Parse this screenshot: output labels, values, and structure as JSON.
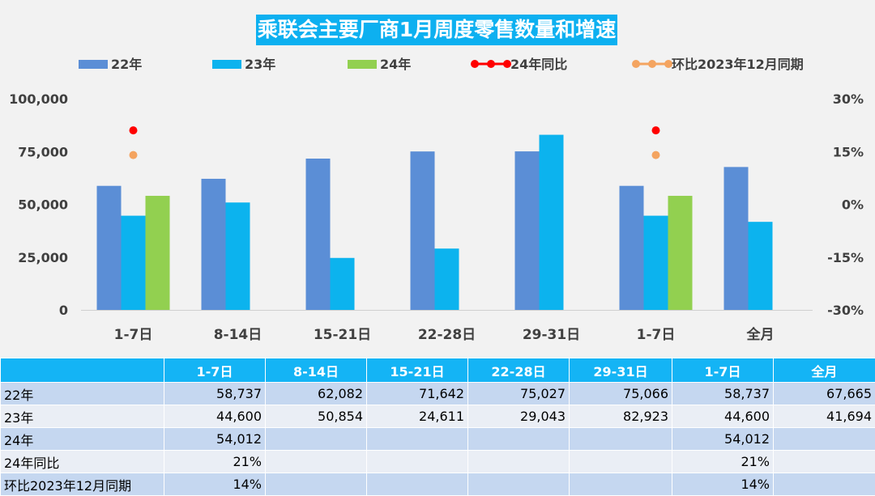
{
  "chart_data": {
    "type": "bar",
    "title": "乘联会主要厂商1月周度零售数量和增速",
    "categories": [
      "1-7日",
      "8-14日",
      "15-21日",
      "22-28日",
      "29-31日",
      "1-7日",
      "全月"
    ],
    "series": [
      {
        "name": "22年",
        "color": "#5b8ed6",
        "values": [
          58737,
          62082,
          71642,
          75027,
          75066,
          58737,
          67665
        ]
      },
      {
        "name": "23年",
        "color": "#0cb3ee",
        "values": [
          44600,
          50854,
          24611,
          29043,
          82923,
          44600,
          41694
        ]
      },
      {
        "name": "24年",
        "color": "#92d050",
        "values": [
          54012,
          null,
          null,
          null,
          null,
          54012,
          null
        ]
      }
    ],
    "secondary_series": [
      {
        "name": "24年同比",
        "color": "#ff0000",
        "values": [
          21,
          null,
          null,
          null,
          null,
          21,
          null
        ]
      },
      {
        "name": "环比2023年12月同期",
        "color": "#f4a460",
        "values": [
          14,
          null,
          null,
          null,
          null,
          14,
          null
        ]
      }
    ],
    "ylim": [
      0,
      100000
    ],
    "yticks": [
      "0",
      "25,000",
      "50,000",
      "75,000",
      "100,000"
    ],
    "y2lim": [
      -30,
      30
    ],
    "y2ticks": [
      "-30%",
      "-15%",
      "0%",
      "15%",
      "30%"
    ],
    "legend_position": "top",
    "grid": false
  },
  "table": {
    "headers": [
      "",
      "1-7日",
      "8-14日",
      "15-21日",
      "22-28日",
      "29-31日",
      "1-7日",
      "全月"
    ],
    "rows": [
      {
        "label": "22年",
        "cells": [
          "58,737",
          "62,082",
          "71,642",
          "75,027",
          "75,066",
          "58,737",
          "67,665"
        ]
      },
      {
        "label": "23年",
        "cells": [
          "44,600",
          "50,854",
          "24,611",
          "29,043",
          "82,923",
          "44,600",
          "41,694"
        ]
      },
      {
        "label": "24年",
        "cells": [
          "54,012",
          "",
          "",
          "",
          "",
          "54,012",
          ""
        ]
      },
      {
        "label": "24年同比",
        "cells": [
          "21%",
          "",
          "",
          "",
          "",
          "21%",
          ""
        ]
      },
      {
        "label": "环比2023年12月同期",
        "cells": [
          "14%",
          "",
          "",
          "",
          "",
          "14%",
          ""
        ]
      }
    ]
  }
}
